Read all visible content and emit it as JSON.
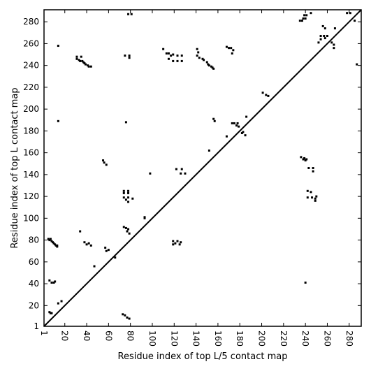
{
  "chart_data": {
    "type": "scatter",
    "title": "",
    "xlabel": "Residue index of top L/5 contact map",
    "ylabel": "Residue index of top L contact map",
    "xlim": [
      1,
      291
    ],
    "ylim": [
      1,
      291
    ],
    "xticks": [
      1,
      20,
      40,
      60,
      80,
      100,
      120,
      140,
      160,
      180,
      200,
      220,
      240,
      260,
      280
    ],
    "yticks": [
      1,
      20,
      40,
      60,
      80,
      100,
      120,
      140,
      160,
      180,
      200,
      220,
      240,
      260,
      280
    ],
    "diagonal": true,
    "grid": false,
    "marker_color": "#000000",
    "lower_triangle_points": [
      [
        5,
        81
      ],
      [
        6,
        80
      ],
      [
        7,
        81
      ],
      [
        8,
        79
      ],
      [
        9,
        78
      ],
      [
        10,
        77
      ],
      [
        11,
        76
      ],
      [
        12,
        75
      ],
      [
        13,
        74
      ],
      [
        13,
        75
      ],
      [
        6,
        43
      ],
      [
        8,
        41
      ],
      [
        10,
        41
      ],
      [
        11,
        42
      ],
      [
        6,
        14
      ],
      [
        7,
        13
      ],
      [
        8,
        13
      ],
      [
        14,
        22
      ],
      [
        17,
        24
      ],
      [
        34,
        88
      ],
      [
        38,
        78
      ],
      [
        40,
        76
      ],
      [
        42,
        77
      ],
      [
        44,
        75
      ],
      [
        47,
        56
      ],
      [
        57,
        73
      ],
      [
        58,
        70
      ],
      [
        60,
        71
      ],
      [
        66,
        64
      ],
      [
        73,
        12
      ],
      [
        75,
        11
      ],
      [
        77,
        9
      ],
      [
        79,
        8
      ],
      [
        74,
        92
      ],
      [
        76,
        91
      ],
      [
        78,
        90
      ],
      [
        77,
        88
      ],
      [
        79,
        86
      ],
      [
        93,
        101
      ],
      [
        93,
        100
      ],
      [
        119,
        79
      ],
      [
        121,
        77
      ],
      [
        123,
        79
      ],
      [
        125,
        76
      ],
      [
        119,
        76
      ],
      [
        126,
        78
      ],
      [
        168,
        175
      ],
      [
        178,
        187
      ],
      [
        182,
        178
      ],
      [
        183,
        179
      ],
      [
        185,
        176
      ],
      [
        186,
        193
      ],
      [
        236,
        156
      ],
      [
        238,
        154
      ],
      [
        240,
        153
      ],
      [
        239,
        155
      ],
      [
        241,
        154
      ],
      [
        243,
        146
      ],
      [
        247,
        143
      ],
      [
        247,
        146
      ],
      [
        242,
        125
      ],
      [
        245,
        124
      ],
      [
        242,
        119
      ],
      [
        246,
        119
      ],
      [
        249,
        118
      ],
      [
        249,
        116
      ],
      [
        250,
        120
      ],
      [
        240,
        41
      ]
    ],
    "upper_triangle_points": [
      [
        14,
        258
      ],
      [
        14,
        189
      ],
      [
        31,
        248
      ],
      [
        31,
        246
      ],
      [
        33,
        245
      ],
      [
        34,
        244
      ],
      [
        36,
        244
      ],
      [
        37,
        243
      ],
      [
        38,
        242
      ],
      [
        39,
        241
      ],
      [
        41,
        240
      ],
      [
        42,
        239
      ],
      [
        44,
        239
      ],
      [
        35,
        248
      ],
      [
        55,
        153
      ],
      [
        56,
        151
      ],
      [
        58,
        149
      ],
      [
        75,
        249
      ],
      [
        79,
        249
      ],
      [
        79,
        247
      ],
      [
        78,
        287
      ],
      [
        81,
        287
      ],
      [
        76,
        188
      ],
      [
        74,
        125
      ],
      [
        74,
        123
      ],
      [
        78,
        125
      ],
      [
        78,
        123
      ],
      [
        74,
        119
      ],
      [
        78,
        119
      ],
      [
        82,
        118
      ],
      [
        76,
        117
      ],
      [
        78,
        115
      ],
      [
        98,
        141
      ],
      [
        110,
        255
      ],
      [
        113,
        251
      ],
      [
        115,
        251
      ],
      [
        117,
        249
      ],
      [
        119,
        250
      ],
      [
        123,
        249
      ],
      [
        127,
        249
      ],
      [
        119,
        244
      ],
      [
        123,
        244
      ],
      [
        127,
        244
      ],
      [
        115,
        246
      ],
      [
        122,
        145
      ],
      [
        127,
        145
      ],
      [
        126,
        141
      ],
      [
        130,
        141
      ],
      [
        142,
        252
      ],
      [
        141,
        249
      ],
      [
        143,
        247
      ],
      [
        146,
        246
      ],
      [
        147,
        245
      ],
      [
        150,
        243
      ],
      [
        151,
        241
      ],
      [
        152,
        240
      ],
      [
        154,
        239
      ],
      [
        155,
        238
      ],
      [
        156,
        237
      ],
      [
        141,
        255
      ],
      [
        152,
        162
      ],
      [
        156,
        191
      ],
      [
        157,
        189
      ],
      [
        168,
        257
      ],
      [
        170,
        256
      ],
      [
        172,
        256
      ],
      [
        174,
        254
      ],
      [
        173,
        251
      ],
      [
        173,
        187
      ],
      [
        175,
        187
      ],
      [
        177,
        185
      ],
      [
        179,
        184
      ],
      [
        201,
        215
      ],
      [
        204,
        213
      ],
      [
        206,
        212
      ],
      [
        235,
        281
      ],
      [
        237,
        281
      ],
      [
        238,
        283
      ],
      [
        240,
        283
      ],
      [
        239,
        286
      ],
      [
        241,
        286
      ],
      [
        245,
        288
      ],
      [
        252,
        261
      ],
      [
        254,
        264
      ],
      [
        254,
        267
      ],
      [
        257,
        267
      ],
      [
        258,
        265
      ],
      [
        260,
        267
      ],
      [
        264,
        261
      ],
      [
        266,
        259
      ],
      [
        266,
        256
      ],
      [
        256,
        276
      ],
      [
        258,
        274
      ],
      [
        267,
        274
      ],
      [
        278,
        288
      ],
      [
        281,
        288
      ],
      [
        285,
        281
      ],
      [
        287,
        241
      ]
    ]
  }
}
